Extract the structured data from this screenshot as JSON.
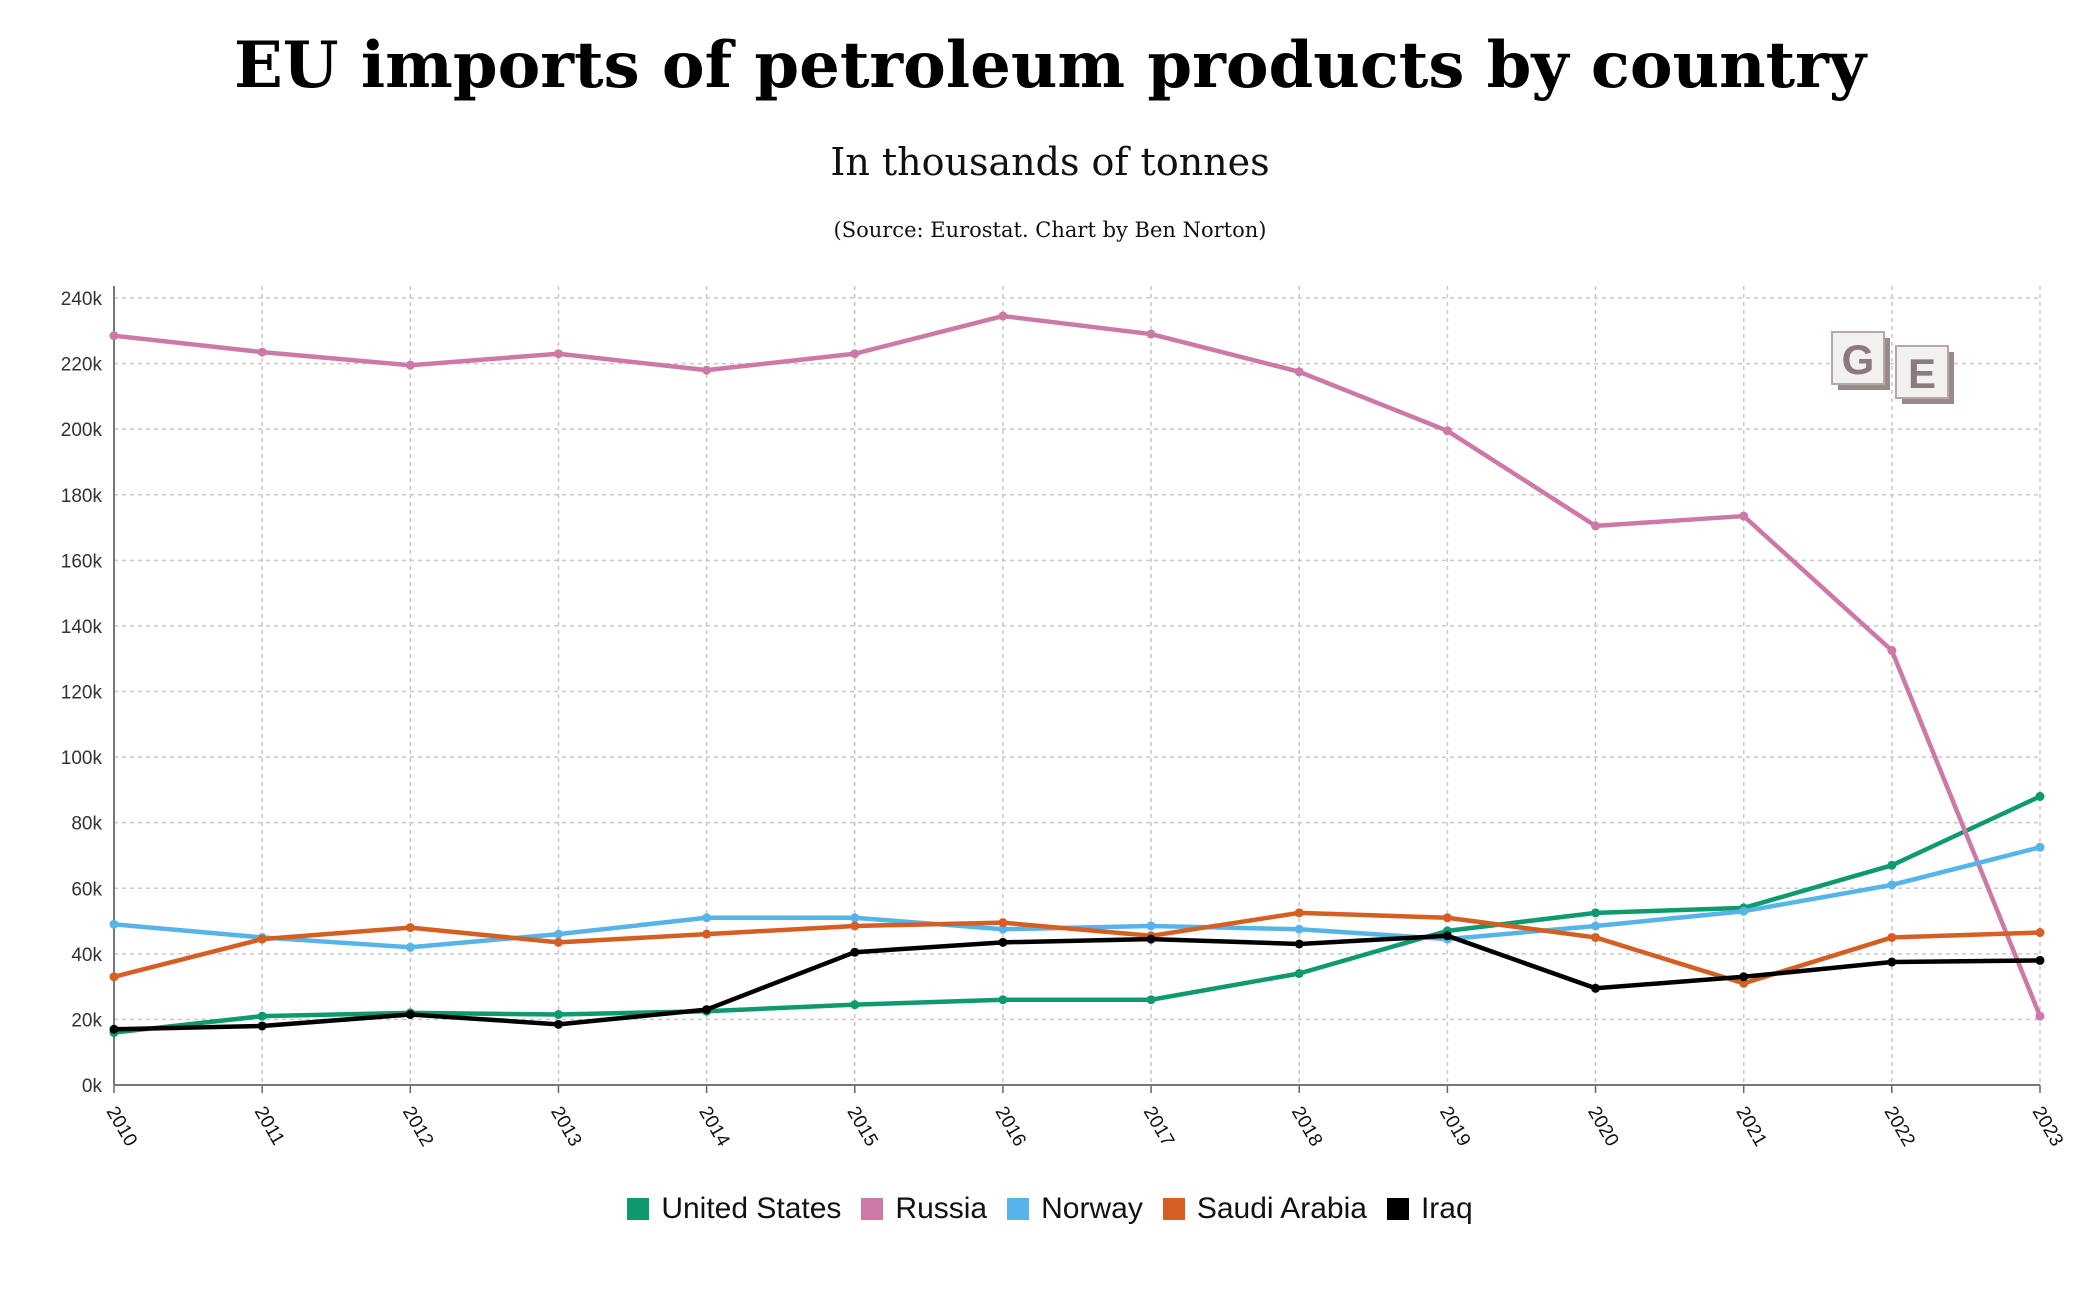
{
  "title": "EU imports of petroleum products by country",
  "subtitle": "In thousands of tonnes",
  "source": "(Source: Eurostat. Chart by Ben Norton)",
  "logo_text": "GE",
  "chart_data": {
    "type": "line",
    "title": "EU imports of petroleum products by country",
    "subtitle": "In thousands of tonnes",
    "xlabel": "",
    "ylabel": "",
    "x": [
      "2010",
      "2011",
      "2012",
      "2013",
      "2014",
      "2015",
      "2016",
      "2017",
      "2018",
      "2019",
      "2020",
      "2021",
      "2022",
      "2023"
    ],
    "ylim": [
      0,
      240000
    ],
    "yticks": [
      0,
      20000,
      40000,
      60000,
      80000,
      100000,
      120000,
      140000,
      160000,
      180000,
      200000,
      220000,
      240000
    ],
    "ytick_labels": [
      "0k",
      "20k",
      "40k",
      "60k",
      "80k",
      "100k",
      "120k",
      "140k",
      "160k",
      "180k",
      "200k",
      "220k",
      "240k"
    ],
    "grid": true,
    "legend_position": "bottom",
    "series": [
      {
        "name": "United States",
        "color": "#0e9a6e",
        "values": [
          16000,
          21000,
          22000,
          21500,
          22500,
          24500,
          26000,
          26000,
          34000,
          47000,
          52500,
          54000,
          67000,
          88000
        ]
      },
      {
        "name": "Russia",
        "color": "#cc79a7",
        "values": [
          228500,
          223500,
          219500,
          223000,
          218000,
          223000,
          234500,
          229000,
          217500,
          199500,
          170500,
          173500,
          132500,
          21000
        ]
      },
      {
        "name": "Norway",
        "color": "#56b4e9",
        "values": [
          49000,
          45000,
          42000,
          46000,
          51000,
          51000,
          47500,
          48500,
          47500,
          44500,
          48500,
          53000,
          61000,
          72500
        ]
      },
      {
        "name": "Saudi Arabia",
        "color": "#d55e22",
        "values": [
          33000,
          44500,
          48000,
          43500,
          46000,
          48500,
          49500,
          45500,
          52500,
          51000,
          45000,
          31000,
          45000,
          46500
        ]
      },
      {
        "name": "Iraq",
        "color": "#000000",
        "values": [
          17000,
          18000,
          21500,
          18500,
          23000,
          40500,
          43500,
          44500,
          43000,
          45500,
          29500,
          33000,
          37500,
          38000
        ]
      }
    ]
  }
}
